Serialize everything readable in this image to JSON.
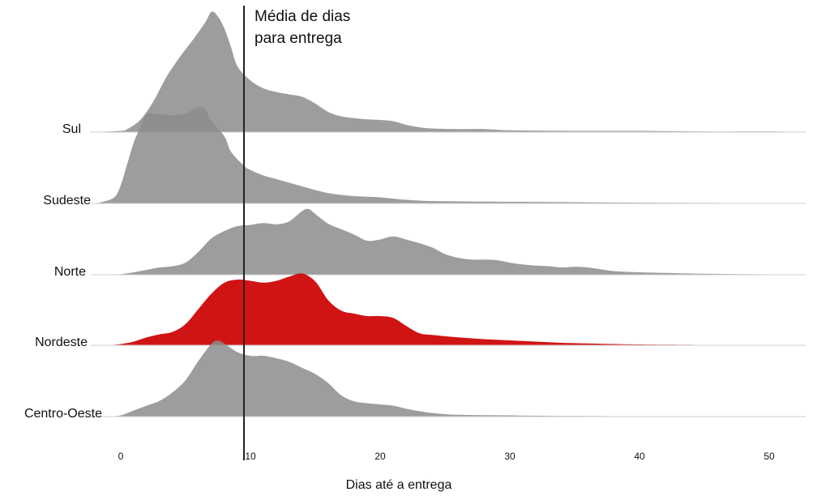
{
  "chart_data": {
    "type": "ridgeline",
    "title": "",
    "xlabel": "Dias até a entrega",
    "ylabel": "",
    "xlim": [
      -1,
      53
    ],
    "x_ticks": [
      0,
      10,
      20,
      30,
      40,
      50
    ],
    "grid": false,
    "annotation": {
      "lines": [
        "Média de dias",
        "para entrega"
      ],
      "x": 9.5
    },
    "colors": {
      "default": "#8c8c8c",
      "highlight": "#cc0000",
      "baseline": "#cccccc",
      "line": "#222222"
    },
    "series": [
      {
        "name": "Sul",
        "color": "#8c8c8c",
        "points": [
          [
            -2.5,
            0
          ],
          [
            0,
            0.02
          ],
          [
            0.5,
            0.05
          ],
          [
            1.5,
            0.2
          ],
          [
            2.5,
            0.5
          ],
          [
            3.5,
            0.9
          ],
          [
            4.5,
            1.22
          ],
          [
            5.5,
            1.5
          ],
          [
            6.5,
            1.8
          ],
          [
            7,
            1.98
          ],
          [
            7.5,
            1.9
          ],
          [
            8,
            1.7
          ],
          [
            8.5,
            1.4
          ],
          [
            9,
            1.08
          ],
          [
            10,
            0.85
          ],
          [
            11,
            0.72
          ],
          [
            12,
            0.66
          ],
          [
            13,
            0.62
          ],
          [
            14,
            0.58
          ],
          [
            15,
            0.47
          ],
          [
            16,
            0.33
          ],
          [
            17,
            0.26
          ],
          [
            18,
            0.23
          ],
          [
            19,
            0.21
          ],
          [
            20,
            0.2
          ],
          [
            21,
            0.18
          ],
          [
            22,
            0.12
          ],
          [
            23,
            0.08
          ],
          [
            24,
            0.06
          ],
          [
            26,
            0.05
          ],
          [
            28,
            0.05
          ],
          [
            30,
            0.03
          ],
          [
            35,
            0.02
          ],
          [
            40,
            0.02
          ],
          [
            45,
            0.01
          ],
          [
            50,
            0.01
          ],
          [
            53,
            0.0
          ]
        ]
      },
      {
        "name": "Sudeste",
        "color": "#8c8c8c",
        "points": [
          [
            -2,
            0
          ],
          [
            -1.5,
            0.02
          ],
          [
            -0.5,
            0.1
          ],
          [
            0,
            0.3
          ],
          [
            0.5,
            0.65
          ],
          [
            1,
            1.0
          ],
          [
            1.5,
            1.25
          ],
          [
            2,
            1.47
          ],
          [
            3,
            1.47
          ],
          [
            4,
            1.45
          ],
          [
            5,
            1.48
          ],
          [
            6,
            1.58
          ],
          [
            6.5,
            1.55
          ],
          [
            7,
            1.35
          ],
          [
            8,
            1.1
          ],
          [
            8.5,
            0.85
          ],
          [
            9.5,
            0.62
          ],
          [
            10,
            0.55
          ],
          [
            11,
            0.46
          ],
          [
            12,
            0.4
          ],
          [
            13,
            0.34
          ],
          [
            14,
            0.28
          ],
          [
            15,
            0.22
          ],
          [
            16,
            0.17
          ],
          [
            17,
            0.14
          ],
          [
            18,
            0.12
          ],
          [
            19,
            0.11
          ],
          [
            20,
            0.1
          ],
          [
            21,
            0.08
          ],
          [
            22,
            0.06
          ],
          [
            24,
            0.04
          ],
          [
            28,
            0.03
          ],
          [
            35,
            0.02
          ],
          [
            42,
            0.01
          ],
          [
            50,
            0.005
          ],
          [
            53,
            0.0
          ]
        ]
      },
      {
        "name": "Norte",
        "color": "#8c8c8c",
        "points": [
          [
            -1,
            0
          ],
          [
            0,
            0.01
          ],
          [
            1,
            0.04
          ],
          [
            2,
            0.08
          ],
          [
            3,
            0.12
          ],
          [
            4,
            0.14
          ],
          [
            5,
            0.2
          ],
          [
            6,
            0.38
          ],
          [
            7,
            0.6
          ],
          [
            8,
            0.72
          ],
          [
            9,
            0.8
          ],
          [
            10,
            0.82
          ],
          [
            11,
            0.85
          ],
          [
            12,
            0.83
          ],
          [
            13,
            0.88
          ],
          [
            14,
            1.05
          ],
          [
            14.5,
            1.08
          ],
          [
            15,
            1.0
          ],
          [
            16,
            0.84
          ],
          [
            17,
            0.75
          ],
          [
            18,
            0.66
          ],
          [
            19,
            0.56
          ],
          [
            20,
            0.58
          ],
          [
            21,
            0.63
          ],
          [
            22,
            0.58
          ],
          [
            23,
            0.52
          ],
          [
            24,
            0.45
          ],
          [
            25,
            0.34
          ],
          [
            26,
            0.28
          ],
          [
            27,
            0.25
          ],
          [
            28,
            0.25
          ],
          [
            29,
            0.24
          ],
          [
            30,
            0.2
          ],
          [
            31,
            0.17
          ],
          [
            32,
            0.15
          ],
          [
            33,
            0.14
          ],
          [
            34,
            0.12
          ],
          [
            35,
            0.13
          ],
          [
            36,
            0.12
          ],
          [
            37,
            0.09
          ],
          [
            38,
            0.06
          ],
          [
            40,
            0.04
          ],
          [
            42,
            0.03
          ],
          [
            44,
            0.02
          ],
          [
            48,
            0.01
          ],
          [
            53,
            0.0
          ]
        ]
      },
      {
        "name": "Nordeste",
        "color": "#cc0000",
        "points": [
          [
            -1,
            0
          ],
          [
            0,
            0.02
          ],
          [
            1,
            0.06
          ],
          [
            2,
            0.13
          ],
          [
            3,
            0.18
          ],
          [
            4,
            0.22
          ],
          [
            5,
            0.35
          ],
          [
            6,
            0.6
          ],
          [
            7,
            0.85
          ],
          [
            8,
            1.03
          ],
          [
            9,
            1.08
          ],
          [
            10,
            1.06
          ],
          [
            11,
            1.03
          ],
          [
            12,
            1.06
          ],
          [
            13,
            1.13
          ],
          [
            14,
            1.18
          ],
          [
            15,
            1.05
          ],
          [
            16,
            0.74
          ],
          [
            17,
            0.57
          ],
          [
            18,
            0.52
          ],
          [
            19,
            0.48
          ],
          [
            20,
            0.48
          ],
          [
            21,
            0.45
          ],
          [
            22,
            0.32
          ],
          [
            23,
            0.2
          ],
          [
            24,
            0.17
          ],
          [
            26,
            0.13
          ],
          [
            28,
            0.1
          ],
          [
            30,
            0.08
          ],
          [
            32,
            0.06
          ],
          [
            34,
            0.04
          ],
          [
            36,
            0.03
          ],
          [
            38,
            0.02
          ],
          [
            42,
            0.01
          ],
          [
            46,
            0.005
          ],
          [
            53,
            0.0
          ]
        ]
      },
      {
        "name": "Centro-Oeste",
        "color": "#8c8c8c",
        "points": [
          [
            -1,
            0
          ],
          [
            0,
            0.02
          ],
          [
            1,
            0.1
          ],
          [
            2,
            0.18
          ],
          [
            3,
            0.26
          ],
          [
            4,
            0.4
          ],
          [
            5,
            0.6
          ],
          [
            6,
            0.92
          ],
          [
            7,
            1.2
          ],
          [
            7.5,
            1.25
          ],
          [
            8,
            1.2
          ],
          [
            9,
            1.06
          ],
          [
            10,
            1.0
          ],
          [
            11,
            1.0
          ],
          [
            12,
            0.96
          ],
          [
            13,
            0.9
          ],
          [
            14,
            0.8
          ],
          [
            15,
            0.7
          ],
          [
            16,
            0.55
          ],
          [
            17,
            0.35
          ],
          [
            18,
            0.25
          ],
          [
            19,
            0.22
          ],
          [
            20,
            0.2
          ],
          [
            21,
            0.18
          ],
          [
            22,
            0.13
          ],
          [
            23,
            0.09
          ],
          [
            24,
            0.06
          ],
          [
            26,
            0.03
          ],
          [
            30,
            0.02
          ],
          [
            35,
            0.01
          ],
          [
            40,
            0.005
          ],
          [
            53,
            0.0
          ]
        ]
      }
    ]
  }
}
